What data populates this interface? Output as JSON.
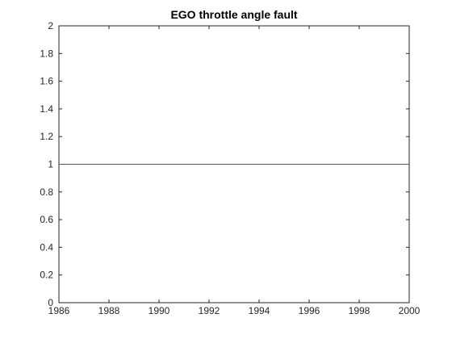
{
  "chart_data": {
    "type": "line",
    "title": "EGO throttle angle fault",
    "xlabel": "",
    "ylabel": "",
    "xlim": [
      1986,
      2000
    ],
    "ylim": [
      0,
      2
    ],
    "xticks": [
      "1986",
      "1988",
      "1990",
      "1992",
      "1994",
      "1996",
      "1998",
      "2000"
    ],
    "yticks": [
      "0",
      "0.2",
      "0.4",
      "0.6",
      "0.8",
      "1",
      "1.2",
      "1.4",
      "1.6",
      "1.8",
      "2"
    ],
    "grid": false,
    "series": [
      {
        "x": [
          1986,
          2000
        ],
        "y": [
          1,
          1
        ],
        "color": "#0072BD"
      }
    ]
  }
}
